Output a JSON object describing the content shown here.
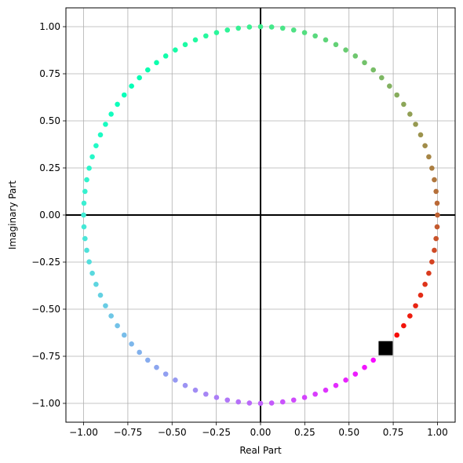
{
  "chart_data": {
    "type": "scatter",
    "title": "",
    "xlabel": "Real Part",
    "ylabel": "Imaginary Part",
    "xlim": [
      -1.1,
      1.1
    ],
    "ylim": [
      -1.1,
      1.1
    ],
    "xticks": [
      -1.0,
      -0.75,
      -0.5,
      -0.25,
      0.0,
      0.25,
      0.5,
      0.75,
      1.0
    ],
    "yticks": [
      -1.0,
      -0.75,
      -0.5,
      -0.25,
      0.0,
      0.25,
      0.5,
      0.75,
      1.0
    ],
    "xtick_labels": [
      "−1.00",
      "−0.75",
      "−0.50",
      "−0.25",
      "0.00",
      "0.25",
      "0.50",
      "0.75",
      "1.00"
    ],
    "ytick_labels": [
      "−1.00",
      "−0.75",
      "−0.50",
      "−0.25",
      "0.00",
      "0.25",
      "0.50",
      "0.75",
      "1.00"
    ],
    "grid": true,
    "colormap": "rainbow",
    "points_description": "unit circle e^(i*2*pi*k/100), k=0..99",
    "point_count": 100,
    "start_angle_deg": 0,
    "highlight_marker": {
      "x": 0.7071,
      "y": -0.7071,
      "shape": "square",
      "color": "#000000"
    },
    "axis_lines_color": "#000000"
  }
}
